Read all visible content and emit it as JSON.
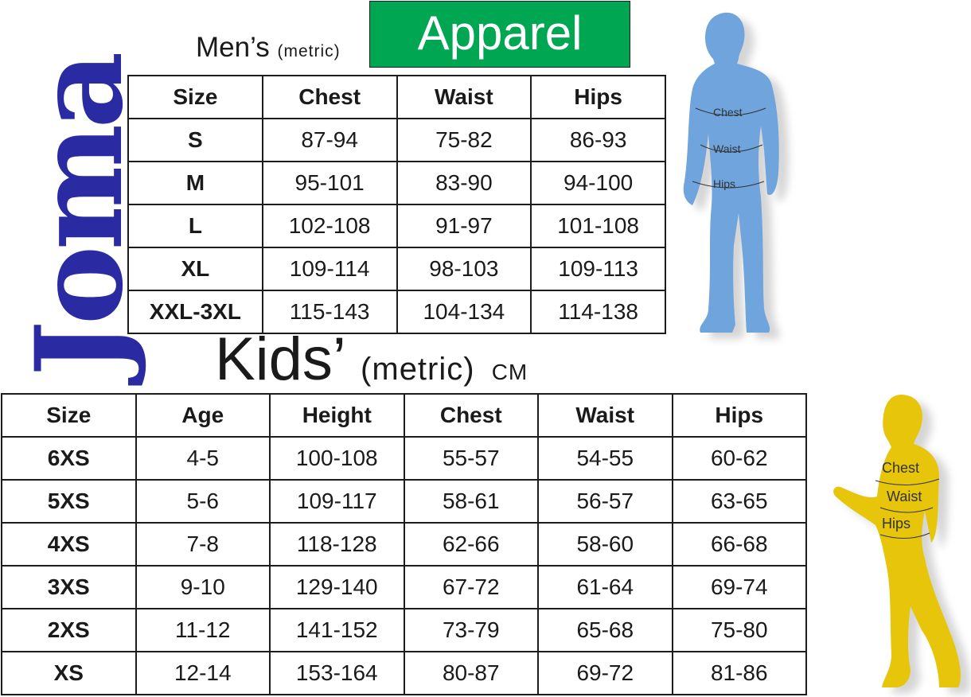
{
  "brand": {
    "logo_text": "Joma"
  },
  "mens": {
    "title": "Men’s",
    "subtitle": "(metric)",
    "badge": "Apparel",
    "headers": [
      "Size",
      "Chest",
      "Waist",
      "Hips"
    ],
    "rows": [
      [
        "S",
        "87-94",
        "75-82",
        "86-93"
      ],
      [
        "M",
        "95-101",
        "83-90",
        "94-100"
      ],
      [
        "L",
        "102-108",
        "91-97",
        "101-108"
      ],
      [
        "XL",
        "109-114",
        "98-103",
        "109-113"
      ],
      [
        "XXL-3XL",
        "115-143",
        "104-134",
        "114-138"
      ]
    ]
  },
  "kids": {
    "title": "Kids’",
    "subtitle": "(metric)",
    "unit": "CM",
    "headers": [
      "Size",
      "Age",
      "Height",
      "Chest",
      "Waist",
      "Hips"
    ],
    "rows": [
      [
        "6XS",
        "4-5",
        "100-108",
        "55-57",
        "54-55",
        "60-62"
      ],
      [
        "5XS",
        "5-6",
        "109-117",
        "58-61",
        "56-57",
        "63-65"
      ],
      [
        "4XS",
        "7-8",
        "118-128",
        "62-66",
        "58-60",
        "66-68"
      ],
      [
        "3XS",
        "9-10",
        "129-140",
        "67-72",
        "61-64",
        "69-74"
      ],
      [
        "2XS",
        "11-12",
        "141-152",
        "73-79",
        "65-68",
        "75-80"
      ],
      [
        "XS",
        "12-14",
        "153-164",
        "80-87",
        "69-72",
        "81-86"
      ]
    ]
  },
  "figures": {
    "adult": {
      "color": "#6fa4dd",
      "labels": [
        "Chest",
        "Waist",
        "Hips"
      ]
    },
    "kid": {
      "color": "#e6c50a",
      "labels": [
        "Chest",
        "Waist",
        "Hips"
      ]
    }
  }
}
